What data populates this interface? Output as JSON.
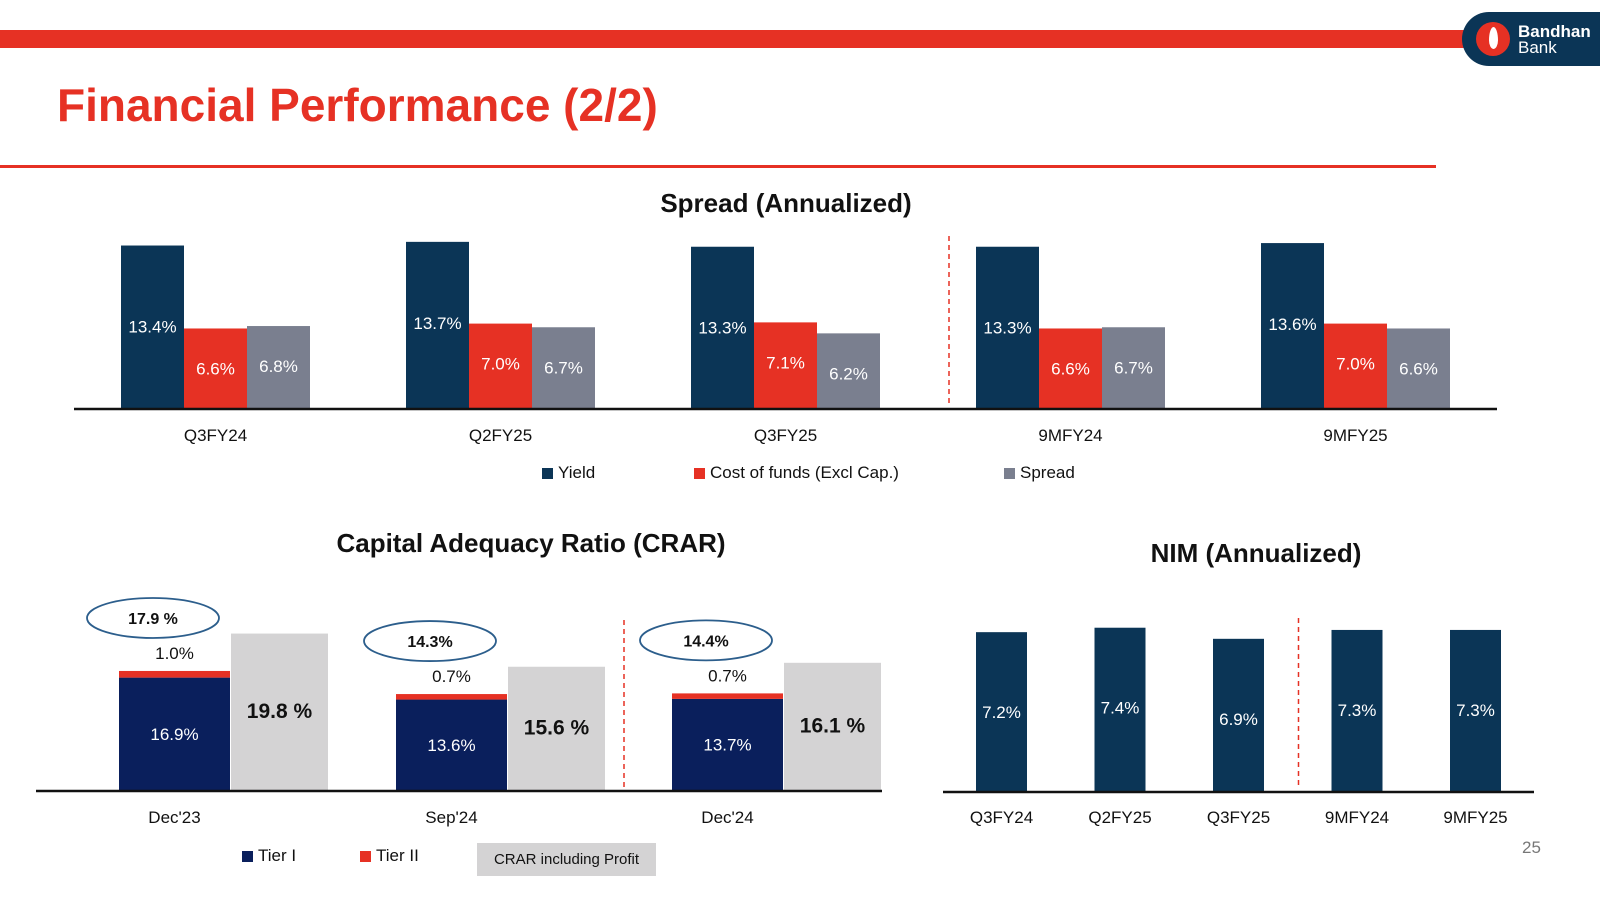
{
  "brand": {
    "name_line1": "Bandhan",
    "name_line2": "Bank",
    "colors": {
      "red": "#e63124",
      "navy": "#0b3556"
    }
  },
  "page_title": "Financial Performance (2/2)",
  "page_number": "25",
  "chart_data": [
    {
      "id": "spread",
      "type": "bar",
      "title": "Spread (Annualized)",
      "categories": [
        "Q3FY24",
        "Q2FY25",
        "Q3FY25",
        "9MFY24",
        "9MFY25"
      ],
      "series": [
        {
          "name": "Yield",
          "color": "#0b3556",
          "values": [
            13.4,
            13.7,
            13.3,
            13.3,
            13.6
          ],
          "labels": [
            "13.4%",
            "13.7%",
            "13.3%",
            "13.3%",
            "13.6%"
          ]
        },
        {
          "name": "Cost of funds (Excl Cap.)",
          "color": "#e63124",
          "values": [
            6.6,
            7.0,
            7.1,
            6.6,
            7.0
          ],
          "labels": [
            "6.6%",
            "7.0%",
            "7.1%",
            "6.6%",
            "7.0%"
          ]
        },
        {
          "name": "Spread",
          "color": "#7a7f8f",
          "values": [
            6.8,
            6.7,
            6.2,
            6.7,
            6.6
          ],
          "labels": [
            "6.8%",
            "6.7%",
            "6.2%",
            "6.7%",
            "6.6%"
          ]
        }
      ],
      "divider_after_index": 2,
      "legend_position": "bottom"
    },
    {
      "id": "crar",
      "type": "stacked-bar",
      "title": "Capital Adequacy Ratio (CRAR)",
      "categories": [
        "Dec'23",
        "Sep'24",
        "Dec'24"
      ],
      "series": [
        {
          "name": "Tier I",
          "color": "#0a1f5c",
          "values": [
            16.9,
            13.6,
            13.7
          ],
          "labels": [
            "16.9%",
            "13.6%",
            "13.7%"
          ]
        },
        {
          "name": "Tier II",
          "color": "#e63124",
          "values": [
            1.0,
            0.7,
            0.7
          ],
          "labels": [
            "1.0%",
            "0.7%",
            "0.7%"
          ]
        }
      ],
      "totals": [
        "17.9 %",
        "14.3%",
        "14.4%"
      ],
      "crar_including_profit": {
        "name": "CRAR including Profit",
        "color": "#d4d3d4",
        "values": [
          19.8,
          15.6,
          16.1
        ],
        "labels": [
          "19.8 %",
          "15.6 %",
          "16.1 %"
        ]
      },
      "divider_after_index": 1,
      "legend_position": "bottom"
    },
    {
      "id": "nim",
      "type": "bar",
      "title": "NIM (Annualized)",
      "categories": [
        "Q3FY24",
        "Q2FY25",
        "Q3FY25",
        "9MFY24",
        "9MFY25"
      ],
      "series": [
        {
          "name": "NIM",
          "color": "#0b3556",
          "values": [
            7.2,
            7.4,
            6.9,
            7.3,
            7.3
          ],
          "labels": [
            "7.2%",
            "7.4%",
            "6.9%",
            "7.3%",
            "7.3%"
          ]
        }
      ],
      "divider_after_index": 2
    }
  ]
}
